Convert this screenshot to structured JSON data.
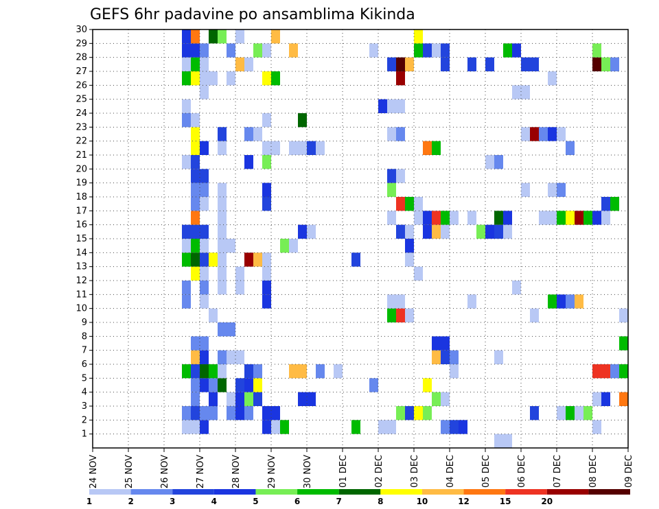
{
  "chart_data": {
    "type": "heatmap",
    "title": "GEFS 6hr padavine po ansamblima Kikinda",
    "xlabel": "",
    "ylabel": "",
    "x_ticks": [
      "24 NOV",
      "25 NOV",
      "26 NOV",
      "27 NOV",
      "28 NOV",
      "29 NOV",
      "30 NOV",
      "01 DEC",
      "02 DEC",
      "03 DEC",
      "04 DEC",
      "05 DEC",
      "06 DEC",
      "07 DEC",
      "08 DEC",
      "09 DEC"
    ],
    "y_ticks": [
      1,
      2,
      3,
      4,
      5,
      6,
      7,
      8,
      9,
      10,
      11,
      12,
      13,
      14,
      15,
      16,
      17,
      18,
      19,
      20,
      21,
      22,
      23,
      24,
      25,
      26,
      27,
      28,
      29,
      30
    ],
    "xlim_days": [
      0,
      15
    ],
    "ylim": [
      0,
      30
    ],
    "grid": true,
    "legend_placement": "bottom",
    "color_levels": [
      1,
      2,
      3,
      4,
      5,
      6,
      7,
      8,
      10,
      12,
      15,
      20
    ],
    "level_colors": [
      "#b8c8f5",
      "#6688ee",
      "#2244dd",
      "#1a35e0",
      "#77ee55",
      "#00bb00",
      "#006600",
      "#ffff00",
      "#ffbb44",
      "#ff7711",
      "#ee3322",
      "#990000",
      "#550000"
    ],
    "cells": [
      [
        2.5,
        1,
        0
      ],
      [
        2.5,
        2,
        1
      ],
      [
        2.75,
        1,
        0
      ],
      [
        2.75,
        2,
        2
      ],
      [
        2.75,
        3,
        1
      ],
      [
        3.0,
        1,
        3
      ],
      [
        3.0,
        2,
        1
      ],
      [
        3.25,
        2,
        1
      ],
      [
        3.25,
        3,
        3
      ],
      [
        3.75,
        2,
        1
      ],
      [
        3.75,
        3,
        0
      ],
      [
        4.0,
        2,
        3
      ],
      [
        4.0,
        3,
        3
      ],
      [
        4.25,
        2,
        1
      ],
      [
        4.25,
        3,
        4
      ],
      [
        4.5,
        3,
        2
      ],
      [
        4.75,
        1,
        3
      ],
      [
        4.75,
        2,
        3
      ],
      [
        5.0,
        1,
        0
      ],
      [
        5.0,
        2,
        3
      ],
      [
        5.25,
        1,
        5
      ],
      [
        5.75,
        3,
        3
      ],
      [
        6.0,
        3,
        3
      ],
      [
        7.25,
        1,
        5
      ],
      [
        8.0,
        1,
        0
      ],
      [
        8.25,
        1,
        0
      ],
      [
        8.5,
        2,
        4
      ],
      [
        8.75,
        2,
        2
      ],
      [
        9.0,
        2,
        7
      ],
      [
        9.25,
        2,
        4
      ],
      [
        9.5,
        3,
        4
      ],
      [
        9.75,
        1,
        1
      ],
      [
        9.75,
        3,
        0
      ],
      [
        10.0,
        1,
        2
      ],
      [
        10.25,
        1,
        3
      ],
      [
        11.25,
        0,
        0
      ],
      [
        11.5,
        0,
        0
      ],
      [
        12.25,
        2,
        2
      ],
      [
        13.0,
        2,
        0
      ],
      [
        13.25,
        2,
        5
      ],
      [
        13.5,
        2,
        0
      ],
      [
        13.75,
        2,
        4
      ],
      [
        14.0,
        1,
        0
      ],
      [
        14.0,
        3,
        0
      ],
      [
        14.25,
        3,
        3
      ],
      [
        14.75,
        3,
        9
      ],
      [
        15.0,
        3,
        11
      ],
      [
        2.5,
        5,
        5
      ],
      [
        2.75,
        4,
        1
      ],
      [
        2.75,
        5,
        2
      ],
      [
        3.0,
        4,
        3
      ],
      [
        3.0,
        5,
        6
      ],
      [
        3.25,
        4,
        1
      ],
      [
        3.25,
        5,
        5
      ],
      [
        3.5,
        4,
        6
      ],
      [
        3.5,
        5,
        0
      ],
      [
        4.0,
        4,
        2
      ],
      [
        4.25,
        4,
        3
      ],
      [
        4.25,
        5,
        2
      ],
      [
        4.5,
        4,
        7
      ],
      [
        4.5,
        5,
        1
      ],
      [
        5.5,
        5,
        8
      ],
      [
        5.75,
        5,
        8
      ],
      [
        6.25,
        5,
        1
      ],
      [
        6.75,
        5,
        0
      ],
      [
        7.75,
        4,
        1
      ],
      [
        9.25,
        4,
        7
      ],
      [
        10.0,
        5,
        0
      ],
      [
        14.0,
        5,
        10
      ],
      [
        14.25,
        5,
        10
      ],
      [
        14.5,
        5,
        1
      ],
      [
        14.75,
        5,
        5
      ],
      [
        2.75,
        6,
        8
      ],
      [
        2.75,
        7,
        1
      ],
      [
        3.0,
        6,
        3
      ],
      [
        3.0,
        7,
        1
      ],
      [
        3.5,
        6,
        1
      ],
      [
        3.5,
        8,
        1
      ],
      [
        3.75,
        6,
        0
      ],
      [
        3.75,
        8,
        1
      ],
      [
        4.0,
        6,
        0
      ],
      [
        9.5,
        6,
        8
      ],
      [
        9.5,
        7,
        3
      ],
      [
        9.75,
        6,
        2
      ],
      [
        9.75,
        7,
        3
      ],
      [
        10.0,
        6,
        1
      ],
      [
        11.25,
        6,
        0
      ],
      [
        14.75,
        7,
        5
      ],
      [
        15.0,
        7,
        0
      ],
      [
        3.25,
        9,
        0
      ],
      [
        8.25,
        9,
        5
      ],
      [
        8.5,
        9,
        10
      ],
      [
        8.75,
        9,
        0
      ],
      [
        12.25,
        9,
        0
      ],
      [
        14.75,
        9,
        0
      ],
      [
        15.0,
        9,
        5
      ],
      [
        2.5,
        10,
        1
      ],
      [
        2.5,
        11,
        1
      ],
      [
        3.0,
        10,
        0
      ],
      [
        3.0,
        11,
        1
      ],
      [
        3.5,
        11,
        0
      ],
      [
        4.0,
        11,
        0
      ],
      [
        4.75,
        10,
        3
      ],
      [
        4.75,
        11,
        3
      ],
      [
        10.5,
        10,
        0
      ],
      [
        12.75,
        10,
        5
      ],
      [
        13.0,
        10,
        3
      ],
      [
        13.25,
        10,
        1
      ],
      [
        13.5,
        10,
        8
      ],
      [
        11.75,
        11,
        0
      ],
      [
        2.75,
        12,
        7
      ],
      [
        3.0,
        12,
        0
      ],
      [
        3.5,
        12,
        0
      ],
      [
        3.5,
        13,
        0
      ],
      [
        4.0,
        12,
        0
      ],
      [
        4.25,
        13,
        11
      ],
      [
        4.5,
        13,
        8
      ],
      [
        4.75,
        13,
        8
      ],
      [
        4.75,
        12,
        0
      ],
      [
        2.5,
        13,
        5
      ],
      [
        2.75,
        13,
        6
      ],
      [
        3.0,
        13,
        2
      ],
      [
        3.25,
        13,
        7
      ],
      [
        3.5,
        14,
        0
      ],
      [
        3.75,
        14,
        0
      ],
      [
        4.75,
        13,
        0
      ],
      [
        8.75,
        13,
        0
      ],
      [
        9.0,
        12,
        0
      ],
      [
        8.25,
        10,
        0
      ],
      [
        8.5,
        10,
        0
      ],
      [
        7.25,
        13,
        2
      ],
      [
        2.5,
        14,
        0
      ],
      [
        2.75,
        14,
        5
      ],
      [
        3.0,
        14,
        0
      ],
      [
        3.5,
        14,
        0
      ],
      [
        5.25,
        14,
        4
      ],
      [
        5.5,
        14,
        0
      ],
      [
        8.75,
        14,
        3
      ],
      [
        2.5,
        15,
        2
      ],
      [
        2.75,
        15,
        2
      ],
      [
        3.0,
        15,
        2
      ],
      [
        3.5,
        15,
        0
      ],
      [
        3.5,
        16,
        0
      ],
      [
        5.75,
        15,
        3
      ],
      [
        6.0,
        15,
        0
      ],
      [
        8.5,
        15,
        2
      ],
      [
        8.75,
        15,
        0
      ],
      [
        9.25,
        15,
        3
      ],
      [
        9.25,
        16,
        3
      ],
      [
        9.5,
        15,
        8
      ],
      [
        9.75,
        15,
        0
      ],
      [
        10.0,
        16,
        0
      ],
      [
        10.75,
        15,
        4
      ],
      [
        11.0,
        15,
        3
      ],
      [
        11.25,
        15,
        2
      ],
      [
        11.5,
        15,
        0
      ],
      [
        2.75,
        16,
        9
      ],
      [
        8.25,
        16,
        0
      ],
      [
        9.0,
        16,
        0
      ],
      [
        9.5,
        16,
        10
      ],
      [
        9.75,
        16,
        5
      ],
      [
        10.5,
        16,
        0
      ],
      [
        11.25,
        16,
        6
      ],
      [
        11.5,
        16,
        3
      ],
      [
        12.5,
        16,
        0
      ],
      [
        12.75,
        16,
        0
      ],
      [
        13.0,
        16,
        5
      ],
      [
        13.25,
        16,
        7
      ],
      [
        13.5,
        16,
        11
      ],
      [
        13.75,
        16,
        5
      ],
      [
        14.0,
        16,
        3
      ],
      [
        14.25,
        16,
        0
      ],
      [
        13.25,
        16,
        7
      ],
      [
        2.75,
        17,
        1
      ],
      [
        3.0,
        17,
        0
      ],
      [
        3.5,
        17,
        0
      ],
      [
        4.75,
        17,
        2
      ],
      [
        4.75,
        18,
        3
      ],
      [
        8.5,
        17,
        10
      ],
      [
        8.75,
        17,
        5
      ],
      [
        9.0,
        17,
        0
      ],
      [
        14.25,
        17,
        2
      ],
      [
        14.5,
        17,
        5
      ],
      [
        15.0,
        17,
        3
      ],
      [
        2.75,
        18,
        1
      ],
      [
        3.0,
        18,
        1
      ],
      [
        3.5,
        18,
        0
      ],
      [
        4.75,
        18,
        3
      ],
      [
        8.25,
        18,
        4
      ],
      [
        12.0,
        18,
        0
      ],
      [
        12.75,
        18,
        0
      ],
      [
        13.0,
        18,
        1
      ],
      [
        2.75,
        19,
        2
      ],
      [
        3.0,
        19,
        2
      ],
      [
        8.25,
        19,
        2
      ],
      [
        8.5,
        19,
        0
      ],
      [
        2.5,
        20,
        0
      ],
      [
        2.75,
        20,
        2
      ],
      [
        4.25,
        20,
        3
      ],
      [
        4.75,
        20,
        4
      ],
      [
        11.0,
        20,
        0
      ],
      [
        11.25,
        20,
        1
      ],
      [
        2.75,
        21,
        7
      ],
      [
        3.0,
        21,
        3
      ],
      [
        3.5,
        21,
        0
      ],
      [
        4.75,
        21,
        0
      ],
      [
        5.0,
        21,
        0
      ],
      [
        5.5,
        21,
        0
      ],
      [
        5.75,
        21,
        0
      ],
      [
        6.0,
        21,
        2
      ],
      [
        6.25,
        21,
        0
      ],
      [
        9.25,
        21,
        9
      ],
      [
        9.5,
        21,
        5
      ],
      [
        13.25,
        21,
        1
      ],
      [
        2.75,
        22,
        7
      ],
      [
        3.5,
        22,
        2
      ],
      [
        4.25,
        22,
        1
      ],
      [
        4.5,
        22,
        0
      ],
      [
        8.25,
        22,
        0
      ],
      [
        8.5,
        22,
        1
      ],
      [
        12.0,
        22,
        0
      ],
      [
        12.25,
        22,
        11
      ],
      [
        12.5,
        22,
        1
      ],
      [
        12.75,
        22,
        3
      ],
      [
        13.0,
        22,
        0
      ],
      [
        2.5,
        23,
        1
      ],
      [
        2.75,
        23,
        0
      ],
      [
        4.75,
        23,
        0
      ],
      [
        5.75,
        23,
        6
      ],
      [
        2.5,
        24,
        0
      ],
      [
        8.0,
        24,
        3
      ],
      [
        8.25,
        24,
        0
      ],
      [
        8.5,
        24,
        0
      ],
      [
        3.0,
        25,
        0
      ],
      [
        11.75,
        25,
        0
      ],
      [
        12.0,
        25,
        0
      ],
      [
        2.5,
        26,
        5
      ],
      [
        2.75,
        26,
        7
      ],
      [
        3.0,
        26,
        0
      ],
      [
        3.25,
        26,
        0
      ],
      [
        3.75,
        26,
        0
      ],
      [
        4.75,
        26,
        7
      ],
      [
        5.0,
        26,
        5
      ],
      [
        8.5,
        26,
        11
      ],
      [
        12.75,
        26,
        0
      ],
      [
        2.5,
        27,
        0
      ],
      [
        2.75,
        27,
        5
      ],
      [
        3.0,
        27,
        0
      ],
      [
        4.0,
        27,
        8
      ],
      [
        4.25,
        27,
        0
      ],
      [
        8.25,
        27,
        2
      ],
      [
        8.5,
        27,
        12
      ],
      [
        8.75,
        27,
        8
      ],
      [
        9.75,
        27,
        2
      ],
      [
        10.5,
        27,
        2
      ],
      [
        11.0,
        27,
        2
      ],
      [
        12.0,
        27,
        2
      ],
      [
        12.25,
        27,
        2
      ],
      [
        14.0,
        27,
        12
      ],
      [
        14.25,
        27,
        4
      ],
      [
        14.5,
        27,
        1
      ],
      [
        2.5,
        28,
        3
      ],
      [
        2.75,
        28,
        3
      ],
      [
        3.0,
        28,
        1
      ],
      [
        3.75,
        28,
        1
      ],
      [
        4.5,
        28,
        4
      ],
      [
        4.75,
        28,
        0
      ],
      [
        5.5,
        28,
        8
      ],
      [
        7.75,
        28,
        0
      ],
      [
        9.0,
        28,
        5
      ],
      [
        9.25,
        28,
        2
      ],
      [
        9.5,
        28,
        0
      ],
      [
        9.75,
        28,
        2
      ],
      [
        11.5,
        28,
        5
      ],
      [
        11.75,
        28,
        3
      ],
      [
        14.0,
        28,
        4
      ],
      [
        2.5,
        29,
        3
      ],
      [
        2.75,
        29,
        9
      ],
      [
        3.25,
        29,
        6
      ],
      [
        3.5,
        29,
        4
      ],
      [
        4.0,
        29,
        0
      ],
      [
        5.0,
        29,
        8
      ],
      [
        9.0,
        29,
        7
      ],
      [
        15.0,
        29,
        5
      ]
    ],
    "legend_labels": [
      "1",
      "2",
      "3",
      "4",
      "5",
      "6",
      "7",
      "8",
      "10",
      "12",
      "15",
      "20"
    ]
  }
}
